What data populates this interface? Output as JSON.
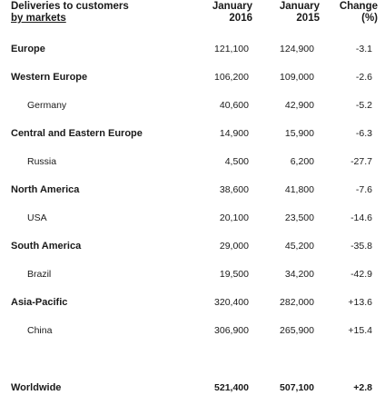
{
  "header": {
    "label_line1": "Deliveries to customers",
    "label_line2": "by markets",
    "col2016_line1": "January",
    "col2016_line2": "2016",
    "col2015_line1": "January",
    "col2015_line2": "2015",
    "change_line1": "Change",
    "change_line2": "(%)"
  },
  "rows": [
    {
      "label": "Europe",
      "v2016": "121,100",
      "v2015": "124,900",
      "change": "-3.1"
    },
    {
      "label": "Western Europe",
      "v2016": "106,200",
      "v2015": "109,000",
      "change": "-2.6"
    },
    {
      "label": "Germany",
      "v2016": "40,600",
      "v2015": "42,900",
      "change": "-5.2"
    },
    {
      "label": "Central and Eastern Europe",
      "v2016": "14,900",
      "v2015": "15,900",
      "change": "-6.3"
    },
    {
      "label": "Russia",
      "v2016": "4,500",
      "v2015": "6,200",
      "change": "-27.7"
    },
    {
      "label": "North America",
      "v2016": "38,600",
      "v2015": "41,800",
      "change": "-7.6"
    },
    {
      "label": "USA",
      "v2016": "20,100",
      "v2015": "23,500",
      "change": "-14.6"
    },
    {
      "label": "South America",
      "v2016": "29,000",
      "v2015": "45,200",
      "change": "-35.8"
    },
    {
      "label": "Brazil",
      "v2016": "19,500",
      "v2015": "34,200",
      "change": "-42.9"
    },
    {
      "label": "Asia-Pacific",
      "v2016": "320,400",
      "v2015": "282,000",
      "change": "+13.6"
    },
    {
      "label": "China",
      "v2016": "306,900",
      "v2015": "265,900",
      "change": "+15.4"
    },
    {
      "label": "Worldwide",
      "v2016": "521,400",
      "v2015": "507,100",
      "change": "+2.8"
    }
  ]
}
